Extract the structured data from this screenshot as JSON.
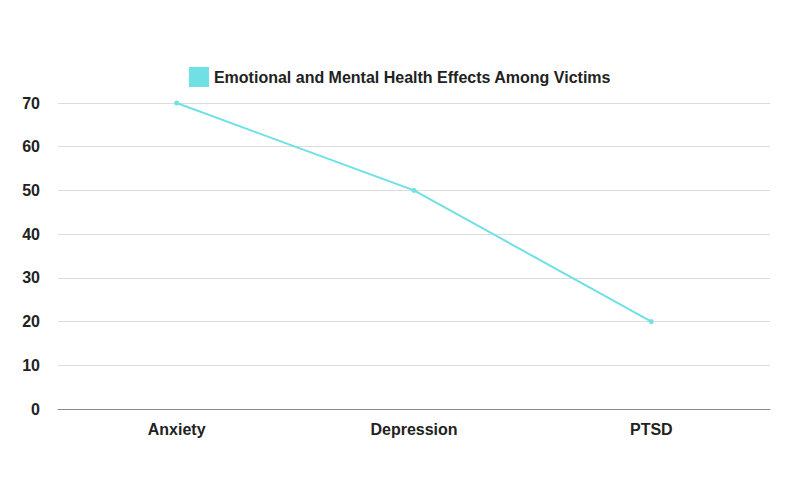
{
  "chart_data": {
    "type": "line",
    "categories": [
      "Anxiety",
      "Depression",
      "PTSD"
    ],
    "series": [
      {
        "name": "Emotional and Mental Health Effects Among Victims",
        "color": "#6fe0e4",
        "values": [
          70,
          50,
          20
        ]
      }
    ],
    "ylim": [
      0,
      70
    ],
    "yticks": [
      0,
      10,
      20,
      30,
      40,
      50,
      60,
      70
    ],
    "grid": true,
    "legend": "top",
    "marker": "circle"
  }
}
